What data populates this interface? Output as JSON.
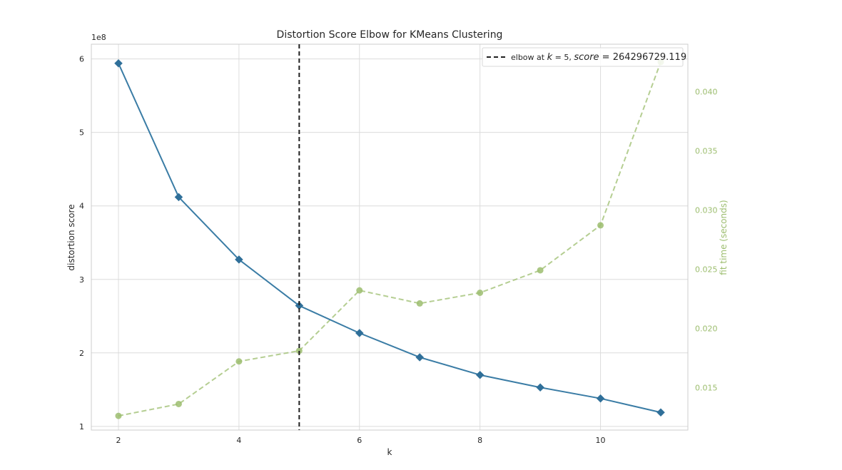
{
  "chart_data": {
    "type": "line",
    "title": "Distortion Score Elbow for KMeans Clustering",
    "xlabel": "k",
    "ylabel": "distortion score",
    "y2label": "fit time (seconds)",
    "y_offset_label": "1e8",
    "x": [
      2,
      3,
      4,
      5,
      6,
      7,
      8,
      9,
      10,
      11
    ],
    "xlim": [
      1.55,
      11.45
    ],
    "ylim": [
      0.95,
      6.2
    ],
    "y2lim": [
      0.0114,
      0.044
    ],
    "x_ticks": [
      "2",
      "4",
      "6",
      "8",
      "10"
    ],
    "y_ticks": [
      "1",
      "2",
      "3",
      "4",
      "5",
      "6"
    ],
    "y2_ticks": [
      "0.015",
      "0.020",
      "0.025",
      "0.030",
      "0.035",
      "0.040"
    ],
    "grid": true,
    "legend_placement": "top-right",
    "series": [
      {
        "axis": "left",
        "style": "solid",
        "marker": "diamond",
        "color": "#3a7ca5",
        "values": [
          5.94,
          4.12,
          3.27,
          2.643,
          2.27,
          1.94,
          1.7,
          1.53,
          1.38,
          1.19
        ]
      },
      {
        "axis": "right",
        "style": "dashed",
        "marker": "circle",
        "color": "#9cbd6e",
        "values": [
          0.0126,
          0.0136,
          0.0172,
          0.0181,
          0.0232,
          0.0221,
          0.023,
          0.0249,
          0.0287,
          0.0425
        ]
      }
    ],
    "elbow": {
      "k": 5,
      "color": "#1f1f1f",
      "legend_prefix": "elbow at ",
      "legend_var_k": "k",
      "legend_eq_k": " = 5, ",
      "legend_var_score": "score",
      "legend_eq_score": " = 264296729.119"
    }
  }
}
